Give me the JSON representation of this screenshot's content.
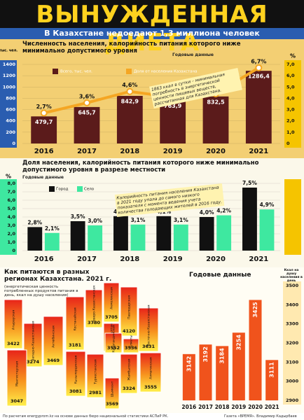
{
  "header": {
    "title": "ВЫНУЖДЕННАЯ ДИЕТА",
    "subtitle": "В Казахстане недоедают 1,3 миллиона человек"
  },
  "chart_data": [
    {
      "type": "combo",
      "title": "Численность населения, калорийность питания которого ниже минимально допустимого уровня",
      "subtitle": "Годовые данные",
      "y_label": "тыс. чел.",
      "y2_label": "%",
      "annotation": "1863 ккал в сутки – минимальная потребность в энергетической ценности пищевых веществ, рассчитанная для Казахстана.",
      "categories": [
        "2016",
        "2017",
        "2018",
        "2019",
        "2020",
        "2021"
      ],
      "series": [
        {
          "name": "Всего, тыс. чел.",
          "type": "bar",
          "color": "#5b1b1b",
          "values": [
            479.7,
            645.7,
            842.9,
            763.9,
            832.5,
            1286.4
          ],
          "value_labels": [
            "479,7",
            "645,7",
            "842,9",
            "763,9",
            "832,5",
            "1286,4"
          ]
        },
        {
          "name": "Доля от населения Казахстана",
          "type": "line",
          "axis": "y2",
          "color": "#f5a623",
          "values": [
            2.7,
            3.6,
            4.6,
            4.1,
            4.4,
            6.7
          ],
          "value_labels": [
            "2,7%",
            "3,6%",
            "4,6%",
            "4,1%",
            "4,4%",
            "6,7%"
          ]
        }
      ],
      "ylim": [
        0,
        1400
      ],
      "yticks": [
        0,
        200,
        400,
        600,
        800,
        1000,
        1200,
        1400
      ],
      "y2lim": [
        0,
        7
      ],
      "y2ticks": [
        0,
        {
          "value": 1,
          "label": "1,0"
        },
        {
          "value": 2,
          "label": "2,0"
        },
        {
          "value": 3,
          "label": "3,0"
        },
        {
          "value": 4,
          "label": "4,0"
        },
        {
          "value": 5,
          "label": "5,0"
        },
        {
          "value": 6,
          "label": "6,0"
        },
        {
          "value": 7,
          "label": "7,0"
        }
      ],
      "grid": true
    },
    {
      "type": "grouped",
      "title": "Доля населения, калорийность питания которого ниже минимально допустимого уровня в разрезе местности",
      "subtitle": "Годовые данные",
      "y_label": "%",
      "annotation": "Калорийность питания населения Казахстана в 2021 году упала до самого низкого показателя с момента ведения учета количества голодающих жителей в 2016 году.",
      "categories": [
        "2016",
        "2017",
        "2018",
        "2019",
        "2020",
        "2021"
      ],
      "series": [
        {
          "name": "Город",
          "color": "#111111",
          "values": [
            2.8,
            3.5,
            4.1,
            4.1,
            4.0,
            7.5
          ],
          "value_labels": [
            "2,8%",
            "3,5%",
            "4,1%",
            "4,1%",
            "4,0%",
            "7,5%"
          ]
        },
        {
          "name": "Село",
          "color": "#3ee8a0",
          "values": [
            2.1,
            3.0,
            3.1,
            3.1,
            4.2,
            4.9
          ],
          "value_labels": [
            "2,1%",
            "3,0%",
            "3,1%",
            "3,1%",
            "4,2%",
            "4,9%"
          ]
        }
      ],
      "ylim": [
        0,
        8
      ],
      "yticks": [
        0,
        {
          "value": 1,
          "label": "1,0"
        },
        {
          "value": 2,
          "label": "2,0"
        },
        {
          "value": 3,
          "label": "3,0"
        },
        {
          "value": 4,
          "label": "4,0"
        },
        {
          "value": 5,
          "label": "5,0"
        },
        {
          "value": 6,
          "label": "6,0"
        },
        {
          "value": 7,
          "label": "7,0"
        },
        {
          "value": 8,
          "label": "8,0"
        }
      ],
      "grid": true
    },
    {
      "type": "map",
      "title": "Как питаются в разных регионах Казахстана. 2021 г.",
      "subtitle": "(энергетическая ценность потребленных продуктов питания в день, ккал на душу населения)",
      "categories": [
        "Атырауская",
        "Западно-Казахстанская",
        "Актюбинская",
        "Мангистауская",
        "Костанайская",
        "Северо-Казахстанская",
        "Акмолинская",
        "Нур-Султан",
        "Павлодарская",
        "Восточно-Казахстанская",
        "Кызылординская",
        "Туркестанская",
        "Шымкент",
        "Карагандинская",
        "Жамбылская",
        "Алматы",
        "Алматинская"
      ],
      "values": [
        3422,
        3274,
        3469,
        3047,
        3181,
        3780,
        3705,
        2856,
        4120,
        3631,
        3081,
        2981,
        3569,
        3552,
        3324,
        3536,
        3555
      ]
    },
    {
      "type": "bar",
      "title": "Годовые данные",
      "y_label": "Ккал на душу населения в день",
      "color": "#f0531c",
      "categories": [
        "2016",
        "2017",
        "2018",
        "2019",
        "2020",
        "2021"
      ],
      "values": [
        3142,
        3192,
        3184,
        3254,
        3425,
        3111
      ],
      "ylim": [
        2900,
        3500
      ],
      "yticks": [
        2900,
        3000,
        3100,
        3200,
        3300,
        3400,
        3500
      ],
      "grid": false
    }
  ],
  "footer": {
    "source": "По расчетам energyprom.kz на основе данных бюро национальной статистики АСПиР РК.",
    "credit": "Газета «ВРЕМЯ». Владимир Кадырбаев"
  }
}
